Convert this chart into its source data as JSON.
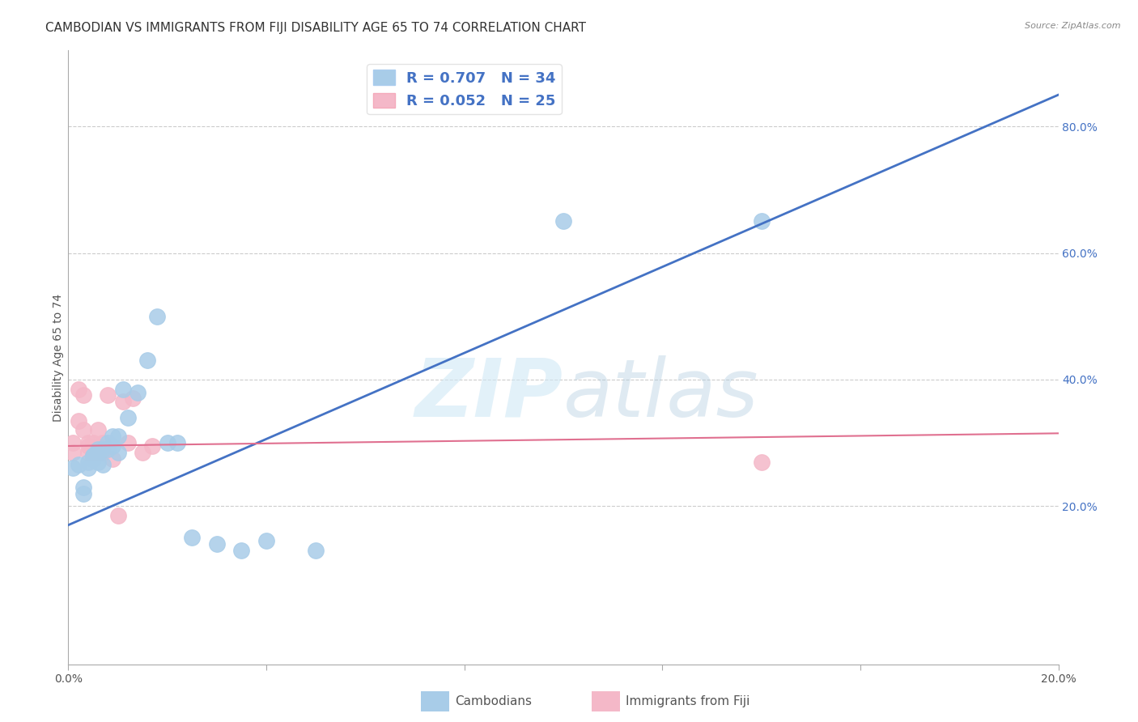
{
  "title": "CAMBODIAN VS IMMIGRANTS FROM FIJI DISABILITY AGE 65 TO 74 CORRELATION CHART",
  "source": "Source: ZipAtlas.com",
  "ylabel": "Disability Age 65 to 74",
  "xlim": [
    0.0,
    0.2
  ],
  "ylim": [
    -0.05,
    0.92
  ],
  "yticks_right": [
    0.2,
    0.4,
    0.6,
    0.8
  ],
  "xtick_positions": [
    0.0,
    0.04,
    0.08,
    0.12,
    0.16,
    0.2
  ],
  "xtick_labels_show": [
    "0.0%",
    "",
    "",
    "",
    "",
    "20.0%"
  ],
  "cambodian_x": [
    0.001,
    0.002,
    0.003,
    0.003,
    0.004,
    0.004,
    0.005,
    0.005,
    0.005,
    0.006,
    0.006,
    0.006,
    0.007,
    0.007,
    0.008,
    0.008,
    0.009,
    0.009,
    0.01,
    0.01,
    0.011,
    0.012,
    0.014,
    0.016,
    0.018,
    0.02,
    0.022,
    0.025,
    0.03,
    0.035,
    0.04,
    0.05,
    0.1,
    0.14
  ],
  "cambodian_y": [
    0.26,
    0.265,
    0.23,
    0.22,
    0.27,
    0.26,
    0.28,
    0.28,
    0.275,
    0.29,
    0.285,
    0.27,
    0.29,
    0.265,
    0.3,
    0.29,
    0.295,
    0.31,
    0.285,
    0.31,
    0.385,
    0.34,
    0.38,
    0.43,
    0.5,
    0.3,
    0.3,
    0.15,
    0.14,
    0.13,
    0.145,
    0.13,
    0.65,
    0.65
  ],
  "fiji_x": [
    0.001,
    0.001,
    0.002,
    0.002,
    0.003,
    0.003,
    0.004,
    0.004,
    0.004,
    0.005,
    0.005,
    0.006,
    0.006,
    0.006,
    0.007,
    0.007,
    0.008,
    0.009,
    0.01,
    0.011,
    0.012,
    0.013,
    0.015,
    0.017,
    0.14
  ],
  "fiji_y": [
    0.3,
    0.285,
    0.385,
    0.335,
    0.375,
    0.32,
    0.295,
    0.3,
    0.285,
    0.285,
    0.3,
    0.285,
    0.295,
    0.32,
    0.3,
    0.285,
    0.375,
    0.275,
    0.185,
    0.365,
    0.3,
    0.37,
    0.285,
    0.295,
    0.27
  ],
  "cambodian_R": 0.707,
  "cambodian_N": 34,
  "fiji_R": 0.052,
  "fiji_N": 25,
  "blue_scatter_color": "#a8cce8",
  "pink_scatter_color": "#f4b8c8",
  "blue_line_color": "#4472c4",
  "pink_line_color": "#e07090",
  "right_axis_color": "#4472c4",
  "legend_text_color": "#4472c4",
  "title_fontsize": 11,
  "label_fontsize": 10,
  "tick_fontsize": 10,
  "source_fontsize": 8,
  "background_color": "#ffffff",
  "watermark_text": "ZIPatlas",
  "watermark_color": "#d0e8f5",
  "grid_color": "#cccccc",
  "spine_color": "#aaaaaa"
}
